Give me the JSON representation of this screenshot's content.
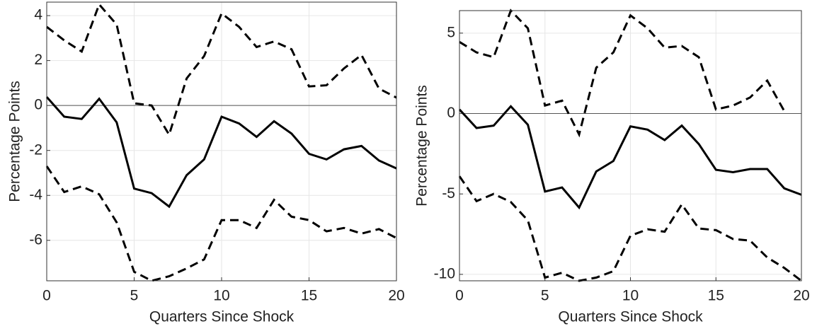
{
  "chart_data": [
    {
      "type": "line",
      "xlabel": "Quarters Since Shock",
      "ylabel": "Percentage Points",
      "x": [
        0,
        1,
        2,
        3,
        4,
        5,
        6,
        7,
        8,
        9,
        10,
        11,
        12,
        13,
        14,
        15,
        16,
        17,
        18,
        19,
        20
      ],
      "xlim": [
        0,
        20
      ],
      "xticks": [
        0,
        5,
        10,
        15,
        20
      ],
      "ylim": [
        -7.8,
        4.6
      ],
      "yticks": [
        -6,
        -4,
        -2,
        0,
        2,
        4
      ],
      "grid": true,
      "zero_line": true,
      "series": [
        {
          "color": "#000000",
          "style": "solid",
          "values": [
            0.38,
            -0.5,
            -0.6,
            0.3,
            -0.75,
            -3.7,
            -3.9,
            -4.5,
            -3.1,
            -2.4,
            -0.5,
            -0.8,
            -1.4,
            -0.7,
            -1.25,
            -2.15,
            -2.4,
            -1.95,
            -1.8,
            -2.45,
            -2.8
          ]
        },
        {
          "color": "#000000",
          "style": "dashed",
          "values": [
            3.5,
            2.9,
            2.4,
            4.5,
            3.6,
            0.1,
            0,
            -1.3,
            1.2,
            2.2,
            4.1,
            3.5,
            2.6,
            2.85,
            2.5,
            0.85,
            0.9,
            1.65,
            2.25,
            0.75,
            0.35
          ]
        },
        {
          "color": "#000000",
          "style": "dashed",
          "values": [
            -2.7,
            -3.85,
            -3.6,
            -3.95,
            -5.2,
            -7.4,
            -7.8,
            -7.6,
            -7.25,
            -6.85,
            -5.1,
            -5.1,
            -5.45,
            -4.2,
            -4.95,
            -5.1,
            -5.6,
            -5.45,
            -5.7,
            -5.5,
            -5.9
          ]
        }
      ]
    },
    {
      "type": "line",
      "xlabel": "Quarters Since Shock",
      "ylabel": "Percentage Points",
      "x": [
        0,
        1,
        2,
        3,
        4,
        5,
        6,
        7,
        8,
        9,
        10,
        11,
        12,
        13,
        14,
        15,
        16,
        17,
        18,
        19,
        20
      ],
      "xlim": [
        0,
        20
      ],
      "xticks": [
        0,
        5,
        10,
        15,
        20
      ],
      "ylim": [
        -10.4,
        6.4
      ],
      "yticks": [
        -10,
        -5,
        0,
        5
      ],
      "grid": true,
      "zero_line": true,
      "series": [
        {
          "color": "#000000",
          "style": "solid",
          "values": [
            0.25,
            -0.9,
            -0.75,
            0.45,
            -0.7,
            -4.85,
            -4.6,
            -5.85,
            -3.6,
            -2.95,
            -0.8,
            -1.0,
            -1.65,
            -0.75,
            -1.9,
            -3.5,
            -3.65,
            -3.45,
            -3.45,
            -4.65,
            -5.05
          ]
        },
        {
          "color": "#000000",
          "style": "dashed",
          "values": [
            4.45,
            3.8,
            3.5,
            6.4,
            5.3,
            0.5,
            0.8,
            -1.3,
            2.85,
            3.8,
            6.1,
            5.3,
            4.1,
            4.2,
            3.5,
            0.25,
            0.5,
            1.0,
            2.05,
            0.15,
            null
          ]
        },
        {
          "color": "#000000",
          "style": "dashed",
          "values": [
            -3.9,
            -5.45,
            -5.0,
            -5.5,
            -6.65,
            -10.2,
            -9.9,
            -10.4,
            -10.2,
            -9.8,
            -7.6,
            -7.2,
            -7.35,
            -5.65,
            -7.15,
            -7.25,
            -7.8,
            -7.9,
            -8.95,
            -9.6,
            -10.4
          ]
        }
      ]
    }
  ]
}
